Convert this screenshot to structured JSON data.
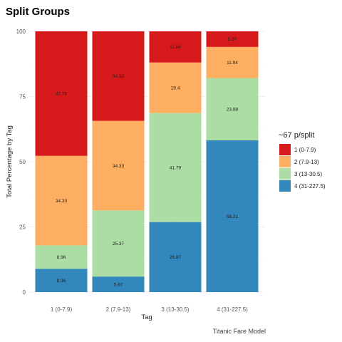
{
  "chart_data": {
    "type": "bar",
    "stacked": true,
    "title": "Split Groups",
    "xlabel": "Tag",
    "ylabel": "Total Percentage by Tag",
    "caption": "Titanic Fare Model",
    "ylim": [
      0,
      100
    ],
    "yticks": [
      0,
      25,
      50,
      75,
      100
    ],
    "categories": [
      "1 (0-7.9)",
      "2 (7.9-13)",
      "3 (13-30.5)",
      "4 (31-227.5)"
    ],
    "legend_title": "~67 p/split",
    "legend_position": "right",
    "grid": true,
    "series": [
      {
        "name": "4 (31-227.5)",
        "color": "#3288bd",
        "values": [
          8.96,
          5.97,
          26.87,
          58.21
        ],
        "labels": [
          "8.96",
          "5.97",
          "26.87",
          "58.21"
        ]
      },
      {
        "name": "3 (13-30.5)",
        "color": "#abdda4",
        "values": [
          8.96,
          25.37,
          41.79,
          23.88
        ],
        "labels": [
          "8.96",
          "25.37",
          "41.79",
          "23.88"
        ]
      },
      {
        "name": "2 (7.9-13)",
        "color": "#fdae61",
        "values": [
          34.33,
          34.33,
          19.4,
          11.94
        ],
        "labels": [
          "34.33",
          "34.33",
          "19.4",
          "11.94"
        ]
      },
      {
        "name": "1 (0-7.9)",
        "color": "#d7191c",
        "values": [
          47.76,
          34.33,
          11.94,
          5.97
        ],
        "labels": [
          "47.76",
          "34.33",
          "11.94",
          "5.97"
        ]
      }
    ],
    "legend_order": [
      "1 (0-7.9)",
      "2 (7.9-13)",
      "3 (13-30.5)",
      "4 (31-227.5)"
    ]
  }
}
